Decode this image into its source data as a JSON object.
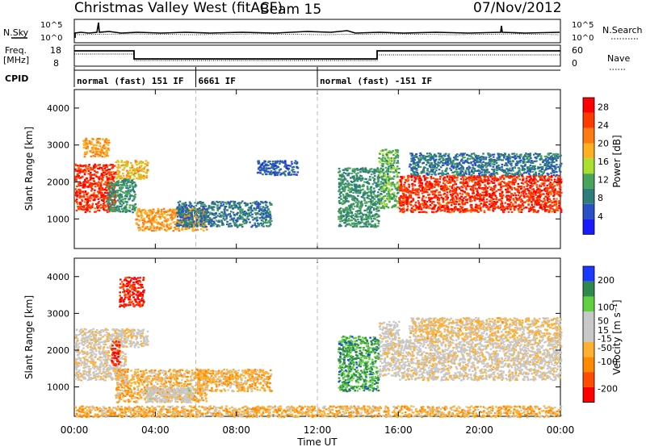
{
  "header": {
    "title": "Christmas Valley West (fitACF)",
    "beam": "Beam 15",
    "date": "07/Nov/2012"
  },
  "strip_labels": {
    "nsky": "N.Sky",
    "nsky_top": "10^5",
    "nsky_bottom": "10^0",
    "nsky_right_top": "10^5",
    "nsky_right_bottom": "10^0",
    "nsearch": "N.Search",
    "freq": "Freq.",
    "freq_unit": "[MHz]",
    "freq_top": "18",
    "freq_bottom": "8",
    "nave_top": "60",
    "nave_bottom": "0",
    "nave": "Nave",
    "cpid": "CPID"
  },
  "cpid_segments": [
    {
      "label": "normal (fast) 151 IF",
      "start_h": 0,
      "end_h": 6
    },
    {
      "label": "6661 IF",
      "start_h": 6,
      "end_h": 12
    },
    {
      "label": "normal (fast) -151 IF",
      "start_h": 12,
      "end_h": 24
    }
  ],
  "colors": {
    "power_scale": [
      "#1a1aff",
      "#2a50c8",
      "#2e7d7d",
      "#4aa35a",
      "#a8e030",
      "#ffb020",
      "#ff7a10",
      "#ff3a00",
      "#ff0000"
    ],
    "velocity_scale": [
      "#ff0000",
      "#ff4a00",
      "#ff8a00",
      "#ffb030",
      "#c8c8c8",
      "#c8c8c8",
      "#60d040",
      "#2e8a4a",
      "#1a3aff"
    ]
  },
  "chart_data": [
    {
      "type": "heatmap",
      "panel": "power",
      "xlabel": "Time UT",
      "ylabel": "Slant Range [km]",
      "xlim": [
        0,
        24
      ],
      "ylim": [
        200,
        4500
      ],
      "x_ticks": [
        "00:00",
        "04:00",
        "08:00",
        "12:00",
        "16:00",
        "20:00",
        "00:00"
      ],
      "y_ticks": [
        1000,
        2000,
        3000,
        4000
      ],
      "colorbar": {
        "label": "Power [dB]",
        "ticks": [
          4,
          8,
          12,
          16,
          20,
          24,
          28
        ],
        "range": [
          0,
          30
        ]
      },
      "regions": [
        {
          "t": [
            0.0,
            2.0
          ],
          "r": [
            1200,
            2500
          ],
          "value": 26
        },
        {
          "t": [
            0.4,
            1.7
          ],
          "r": [
            2700,
            3200
          ],
          "value": 20
        },
        {
          "t": [
            2.0,
            3.6
          ],
          "r": [
            2100,
            2600
          ],
          "value": 18
        },
        {
          "t": [
            1.6,
            3.0
          ],
          "r": [
            1200,
            2100
          ],
          "value": 10
        },
        {
          "t": [
            3.0,
            6.5
          ],
          "r": [
            700,
            1300
          ],
          "value": 20
        },
        {
          "t": [
            5.0,
            9.7
          ],
          "r": [
            800,
            1500
          ],
          "value": 8
        },
        {
          "t": [
            9.0,
            11.0
          ],
          "r": [
            2200,
            2600
          ],
          "value": 6
        },
        {
          "t": [
            13.0,
            15.0
          ],
          "r": [
            800,
            2400
          ],
          "value": 10
        },
        {
          "t": [
            15.0,
            16.0
          ],
          "r": [
            1300,
            2900
          ],
          "value": 12
        },
        {
          "t": [
            16.0,
            24.0
          ],
          "r": [
            1200,
            2200
          ],
          "value": 26
        },
        {
          "t": [
            16.5,
            24.0
          ],
          "r": [
            2200,
            2800
          ],
          "value": 8
        }
      ]
    },
    {
      "type": "heatmap",
      "panel": "velocity",
      "xlabel": "Time UT",
      "ylabel": "Slant Range [km]",
      "xlim": [
        0,
        24
      ],
      "ylim": [
        200,
        4500
      ],
      "x_ticks": [
        "00:00",
        "04:00",
        "08:00",
        "12:00",
        "16:00",
        "20:00",
        "00:00"
      ],
      "y_ticks": [
        1000,
        2000,
        3000,
        4000
      ],
      "colorbar": {
        "label": "Velocity [m s⁻¹]",
        "ticks": [
          200,
          100,
          50,
          15,
          -15,
          -50,
          -100,
          -200
        ],
        "range": [
          -250,
          250
        ]
      },
      "regions": [
        {
          "t": [
            0.0,
            2.5
          ],
          "r": [
            1200,
            2600
          ],
          "value": 0
        },
        {
          "t": [
            2.0,
            3.6
          ],
          "r": [
            2100,
            2600
          ],
          "value": 0
        },
        {
          "t": [
            2.2,
            3.4
          ],
          "r": [
            3200,
            4000
          ],
          "value": -200
        },
        {
          "t": [
            1.8,
            2.2
          ],
          "r": [
            1600,
            2300
          ],
          "value": -200
        },
        {
          "t": [
            2.0,
            6.5
          ],
          "r": [
            600,
            1500
          ],
          "value": -60
        },
        {
          "t": [
            3.5,
            5.8
          ],
          "r": [
            600,
            1000
          ],
          "value": 30
        },
        {
          "t": [
            6.0,
            9.7
          ],
          "r": [
            900,
            1500
          ],
          "value": -60
        },
        {
          "t": [
            13.0,
            15.0
          ],
          "r": [
            900,
            2400
          ],
          "value": 150
        },
        {
          "t": [
            15.0,
            16.0
          ],
          "r": [
            1300,
            2800
          ],
          "value": 0
        },
        {
          "t": [
            16.0,
            24.0
          ],
          "r": [
            1200,
            2300
          ],
          "value": 0
        },
        {
          "t": [
            16.5,
            24.0
          ],
          "r": [
            2300,
            2900
          ],
          "value": -30
        },
        {
          "t": [
            0.0,
            24.0
          ],
          "r": [
            200,
            500
          ],
          "value": -60
        }
      ]
    }
  ]
}
